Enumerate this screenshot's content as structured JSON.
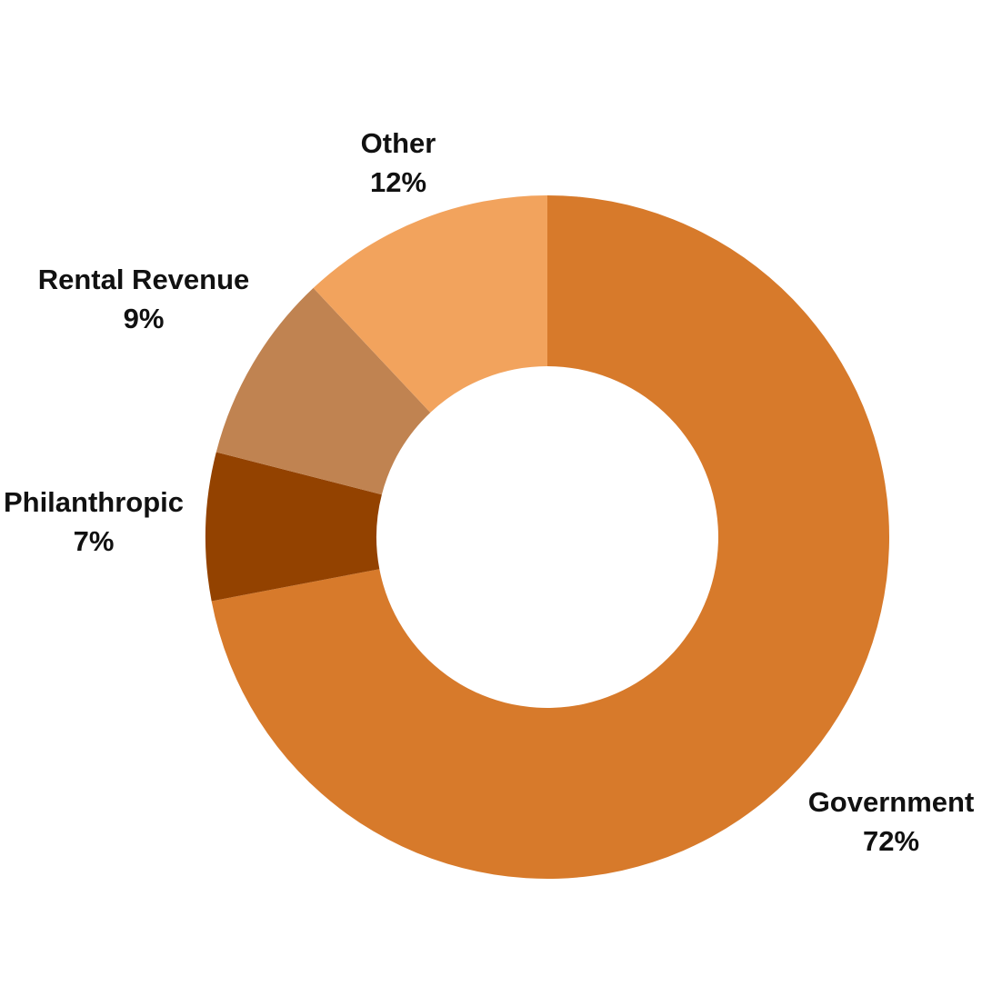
{
  "chart_data": {
    "type": "donut",
    "categories": [
      "Government",
      "Philanthropic",
      "Rental Revenue",
      "Other"
    ],
    "values": [
      72,
      7,
      9,
      12
    ],
    "value_labels": [
      "72%",
      "7%",
      "9%",
      "12%"
    ],
    "colors": [
      "#d77a2b",
      "#934200",
      "#c08351",
      "#f2a35d"
    ]
  }
}
